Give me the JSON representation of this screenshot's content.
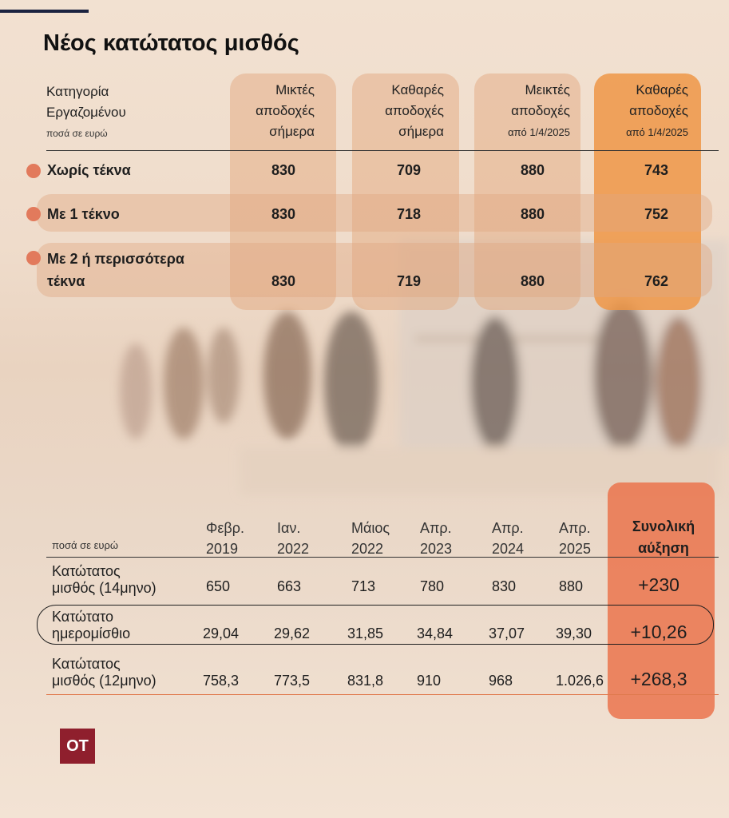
{
  "title": "Νέος κατώτατος μισθός",
  "logo": "OT",
  "colors": {
    "accent": "#ee9646",
    "total_panel": "#ea7048",
    "dot": "#e27a5c",
    "logo_bg": "#8f1f2d"
  },
  "chart_data": [
    {
      "type": "table",
      "header": {
        "category": [
          "Κατηγορία",
          "Εργαζομένου"
        ],
        "unit_note": "ποσά σε ευρώ",
        "columns": [
          {
            "lines": [
              "Μικτές",
              "αποδοχές",
              "σήμερα"
            ]
          },
          {
            "lines": [
              "Καθαρές",
              "αποδοχές",
              "σήμερα"
            ]
          },
          {
            "lines": [
              "Μεικτές",
              "αποδοχές",
              "από 1/4/2025"
            ]
          },
          {
            "lines": [
              "Καθαρές",
              "αποδοχές",
              "από 1/4/2025"
            ]
          }
        ]
      },
      "rows": [
        {
          "label": [
            "Χωρίς τέκνα"
          ],
          "values": [
            "830",
            "709",
            "880",
            "743"
          ]
        },
        {
          "label": [
            "Με 1 τέκνο"
          ],
          "values": [
            "830",
            "718",
            "880",
            "752"
          ]
        },
        {
          "label": [
            "Με 2 ή περισσότερα",
            "τέκνα"
          ],
          "values": [
            "830",
            "719",
            "880",
            "762"
          ]
        }
      ]
    },
    {
      "type": "table",
      "unit_note": "ποσά σε ευρώ",
      "columns": [
        [
          "Φεβρ.",
          "2019"
        ],
        [
          "Ιαν.",
          "2022"
        ],
        [
          "Μάιος",
          "2022"
        ],
        [
          "Απρ.",
          "2023"
        ],
        [
          "Απρ.",
          "2024"
        ],
        [
          "Απρ.",
          "2025"
        ]
      ],
      "total_header": [
        "Συνολική",
        "αύξηση"
      ],
      "rows": [
        {
          "label": [
            "Κατώτατος",
            "μισθός (14μηνο)"
          ],
          "values": [
            "650",
            "663",
            "713",
            "780",
            "830",
            "880"
          ],
          "total": "+230"
        },
        {
          "label": [
            "Κατώτατο",
            "ημερομίσθιο"
          ],
          "values": [
            "29,04",
            "29,62",
            "31,85",
            "34,84",
            "37,07",
            "39,30"
          ],
          "total": "+10,26"
        },
        {
          "label": [
            "Κατώτατος",
            "μισθός (12μηνο)"
          ],
          "values": [
            "758,3",
            "773,5",
            "831,8",
            "910",
            "968",
            "1.026,6"
          ],
          "total": "+268,3"
        }
      ]
    }
  ]
}
